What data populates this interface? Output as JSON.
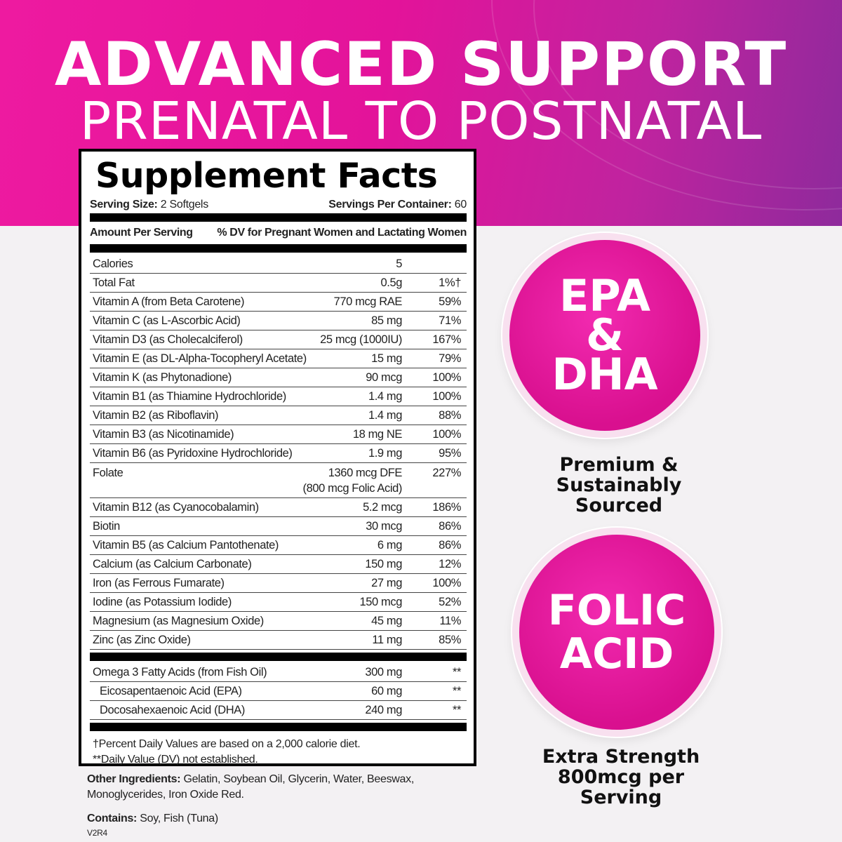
{
  "header": {
    "line1": "ADVANCED SUPPORT",
    "line2": "PRENATAL TO POSTNATAL"
  },
  "facts": {
    "title": "Supplement Facts",
    "serving_size_label": "Serving Size:",
    "serving_size": "2 Softgels",
    "servings_label": "Servings Per Container:",
    "servings": "60",
    "amount_header": "Amount Per Serving",
    "dv_header": "% DV for Pregnant Women and Lactating Women",
    "rows": [
      {
        "name": "Calories",
        "amount": "5",
        "dv": ""
      },
      {
        "name": "Total Fat",
        "amount": "0.5g",
        "dv": "1%†"
      },
      {
        "name": "Vitamin A (from Beta Carotene)",
        "amount": "770 mcg RAE",
        "dv": "59%"
      },
      {
        "name": "Vitamin C (as L-Ascorbic Acid)",
        "amount": "85 mg",
        "dv": "71%"
      },
      {
        "name": "Vitamin D3 (as Cholecalciferol)",
        "amount": "25 mcg (1000IU)",
        "dv": "167%"
      },
      {
        "name": "Vitamin E (as DL-Alpha-Tocopheryl Acetate)",
        "amount": "15 mg",
        "dv": "79%"
      },
      {
        "name": "Vitamin K (as Phytonadione)",
        "amount": "90 mcg",
        "dv": "100%"
      },
      {
        "name": "Vitamin B1 (as Thiamine Hydrochloride)",
        "amount": "1.4 mg",
        "dv": "100%"
      },
      {
        "name": "Vitamin B2 (as Riboflavin)",
        "amount": "1.4 mg",
        "dv": "88%"
      },
      {
        "name": "Vitamin B3 (as Nicotinamide)",
        "amount": "18 mg NE",
        "dv": "100%"
      },
      {
        "name": "Vitamin B6 (as Pyridoxine Hydrochloride)",
        "amount": "1.9 mg",
        "dv": "95%"
      },
      {
        "name": "Folate",
        "amount": "1360 mcg DFE",
        "amount2": "(800 mcg Folic Acid)",
        "dv": "227%"
      },
      {
        "name": "Vitamin B12 (as Cyanocobalamin)",
        "amount": "5.2 mcg",
        "dv": "186%"
      },
      {
        "name": "Biotin",
        "amount": "30 mcg",
        "dv": "86%"
      },
      {
        "name": "Vitamin B5 (as Calcium Pantothenate)",
        "amount": "6 mg",
        "dv": "86%"
      },
      {
        "name": "Calcium (as Calcium Carbonate)",
        "amount": "150 mg",
        "dv": "12%"
      },
      {
        "name": "Iron (as Ferrous Fumarate)",
        "amount": "27 mg",
        "dv": "100%"
      },
      {
        "name": "Iodine (as Potassium Iodide)",
        "amount": "150 mcg",
        "dv": "52%"
      },
      {
        "name": "Magnesium (as Magnesium Oxide)",
        "amount": "45 mg",
        "dv": "11%"
      },
      {
        "name": "Zinc (as Zinc Oxide)",
        "amount": "11 mg",
        "dv": "85%"
      }
    ],
    "omega_rows": [
      {
        "name": "Omega 3 Fatty Acids (from Fish Oil)",
        "amount": "300 mg",
        "dv": "**"
      },
      {
        "name": "Eicosapentaenoic Acid (EPA)",
        "amount": "60 mg",
        "dv": "**",
        "sub": true
      },
      {
        "name": "Docosahexaenoic Acid (DHA)",
        "amount": "240 mg",
        "dv": "**",
        "sub": true
      }
    ],
    "footnote1": "†Percent Daily Values are based on a 2,000 calorie diet.",
    "footnote2": "**Daily Value (DV) not established."
  },
  "other": {
    "ingredients_label": "Other Ingredients:",
    "ingredients": "Gelatin, Soybean Oil, Glycerin, Water, Beeswax, Monoglycerides, Iron Oxide Red.",
    "contains_label": "Contains:",
    "contains": "Soy, Fish (Tuna)",
    "code": "V2R4"
  },
  "badges": [
    {
      "line1": "EPA",
      "line2": "&",
      "line3": "DHA",
      "caption": [
        "Premium &",
        "Sustainably",
        "Sourced"
      ]
    },
    {
      "line1": "FOLIC",
      "line2": "ACID",
      "caption": [
        "Extra Strength",
        "800mcg per",
        "Serving"
      ]
    }
  ],
  "colors": {
    "brand_pink": "#e3139a",
    "purple": "#8e2a9c"
  }
}
